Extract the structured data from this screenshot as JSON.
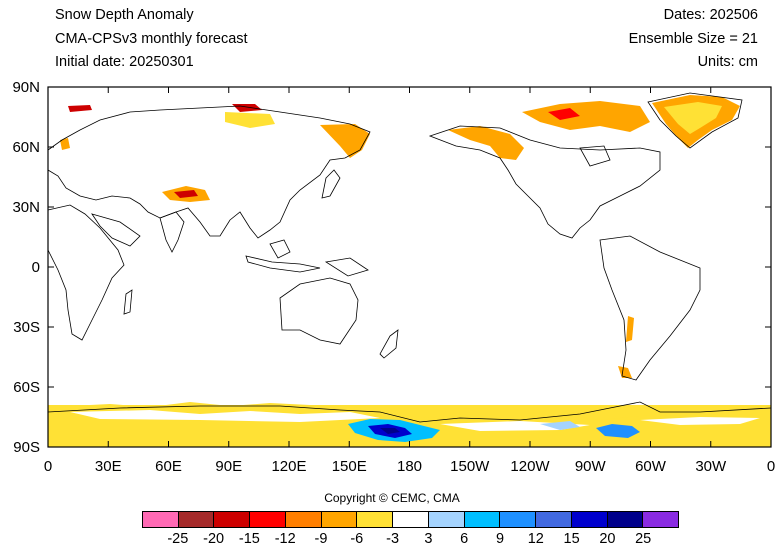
{
  "header": {
    "title": "Snow Depth Anomaly",
    "model": "CMA-CPSv3 monthly forecast",
    "initial_date": "Initial date: 20250301",
    "dates": "Dates: 202506",
    "ensemble": "Ensemble Size = 21",
    "units": "Units: cm"
  },
  "map": {
    "projection": "equirectangular",
    "center_longitude": 180,
    "lat_ticks": [
      "90N",
      "60N",
      "30N",
      "0",
      "30S",
      "60S",
      "90S"
    ],
    "lon_ticks": [
      "0",
      "30E",
      "60E",
      "90E",
      "120E",
      "150E",
      "180",
      "150W",
      "120W",
      "90W",
      "60W",
      "30W",
      "0"
    ]
  },
  "copyright": "Copyright © CEMC, CMA",
  "colorbar": {
    "labels": [
      "-25",
      "-20",
      "-15",
      "-12",
      "-9",
      "-6",
      "-3",
      "3",
      "6",
      "9",
      "12",
      "15",
      "20",
      "25"
    ],
    "colors": [
      "#ff69b4",
      "#a52a2a",
      "#cd0000",
      "#ff0000",
      "#ff7f00",
      "#ffa500",
      "#ffe135",
      "#ffffff",
      "#a4d3fe",
      "#00bfff",
      "#1e90ff",
      "#4169e1",
      "#0000cd",
      "#00008b",
      "#8a2be2"
    ]
  }
}
